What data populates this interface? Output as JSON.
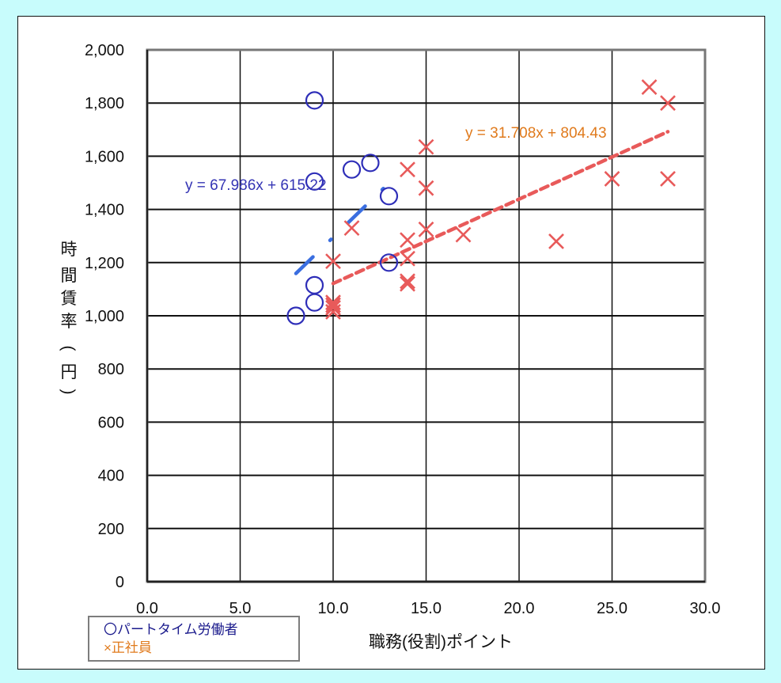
{
  "chart_data": {
    "type": "scatter",
    "title": "",
    "xlabel": "職務(役割)ポイント",
    "ylabel": "時間賃率（円）",
    "xlim": [
      0,
      30
    ],
    "ylim": [
      0,
      2000
    ],
    "x_ticks": [
      "0.0",
      "5.0",
      "10.0",
      "15.0",
      "20.0",
      "25.0",
      "30.0"
    ],
    "y_ticks": [
      "0",
      "200",
      "400",
      "600",
      "800",
      "1,000",
      "1,200",
      "1,400",
      "1,600",
      "1,800",
      "2,000"
    ],
    "grid": true,
    "legend_position": "bottom-left",
    "series": [
      {
        "name": "パートタイム労働者",
        "marker": "circle",
        "color": "#2e2eb8",
        "points": [
          [
            8,
            1000
          ],
          [
            9,
            1050
          ],
          [
            9,
            1115
          ],
          [
            9,
            1505
          ],
          [
            9,
            1810
          ],
          [
            11,
            1550
          ],
          [
            12,
            1575
          ],
          [
            13,
            1450
          ],
          [
            13,
            1200
          ]
        ],
        "trendline": {
          "slope": 67.986,
          "intercept": 615.22,
          "x_range": [
            8,
            13
          ],
          "color": "#3a6ee0",
          "label": "y = 67.986x + 615.22"
        }
      },
      {
        "name": "正社員",
        "marker": "x",
        "color": "#e85a5a",
        "points": [
          [
            10,
            1015
          ],
          [
            10,
            1030
          ],
          [
            10,
            1040
          ],
          [
            10,
            1050
          ],
          [
            10,
            1205
          ],
          [
            11,
            1330
          ],
          [
            14,
            1120
          ],
          [
            14,
            1130
          ],
          [
            14,
            1215
          ],
          [
            14,
            1285
          ],
          [
            14,
            1550
          ],
          [
            15,
            1325
          ],
          [
            15,
            1480
          ],
          [
            15,
            1635
          ],
          [
            17,
            1305
          ],
          [
            22,
            1280
          ],
          [
            25,
            1515
          ],
          [
            27,
            1860
          ],
          [
            28,
            1800
          ],
          [
            28,
            1515
          ]
        ],
        "trendline": {
          "slope": 31.708,
          "intercept": 804.43,
          "x_range": [
            10,
            28
          ],
          "color": "#e85a5a",
          "label": "y = 31.708x + 804.43"
        }
      }
    ]
  },
  "legend": {
    "part_time": "〇パートタイム労働者",
    "regular": "×正社員"
  },
  "axes": {
    "x_title": "職務(役割)ポイント",
    "y_title_chars": [
      "時",
      "間",
      "賃",
      "率",
      "（",
      "円",
      "）"
    ]
  },
  "equations": {
    "part_time": "y = 67.986x + 615.22",
    "regular": "y = 31.708x + 804.43"
  }
}
